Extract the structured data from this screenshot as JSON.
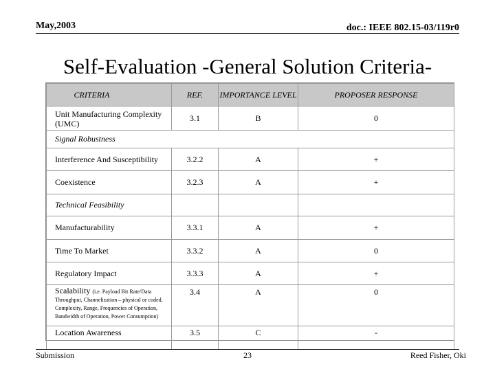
{
  "header": {
    "date": "May,2003",
    "doc_id": "doc.: IEEE 802.15-03/119r0"
  },
  "title": "Self-Evaluation -General Solution Criteria-",
  "table": {
    "columns": [
      "CRITERIA",
      "REF.",
      "IMPORTANCE LEVEL",
      "PROPOSER RESPONSE"
    ],
    "rows": [
      {
        "criteria": "Unit Manufacturing Complexity (UMC)",
        "ref": "3.1",
        "importance": "B",
        "response": "0"
      },
      {
        "section": "Signal Robustness"
      },
      {
        "criteria": "Interference And Susceptibility",
        "ref": "3.2.2",
        "importance": "A",
        "response": "+"
      },
      {
        "criteria": "Coexistence",
        "ref": "3.2.3",
        "importance": "A",
        "response": "+"
      },
      {
        "section": "Technical Feasibility"
      },
      {
        "criteria": "Manufacturability",
        "ref": "3.3.1",
        "importance": "A",
        "response": "+"
      },
      {
        "criteria": "Time To Market",
        "ref": "3.3.2",
        "importance": "A",
        "response": "0"
      },
      {
        "criteria": "Regulatory Impact",
        "ref": "3.3.3",
        "importance": "A",
        "response": "+"
      },
      {
        "criteria": "Scalability",
        "criteria_note": "(i.e. Payload Bit Rate/Data Throughput, Channelization – physical or coded, Complexity, Range, Frequencies of Operation, Bandwidth of Operation, Power Consumption)",
        "ref": "3.4",
        "importance": "A",
        "response": "0"
      },
      {
        "criteria": "Location Awareness",
        "ref": "3.5",
        "importance": "C",
        "response": "-"
      }
    ]
  },
  "footer": {
    "left": "Submission",
    "page": "23",
    "author": "Reed Fisher,  Oki"
  }
}
